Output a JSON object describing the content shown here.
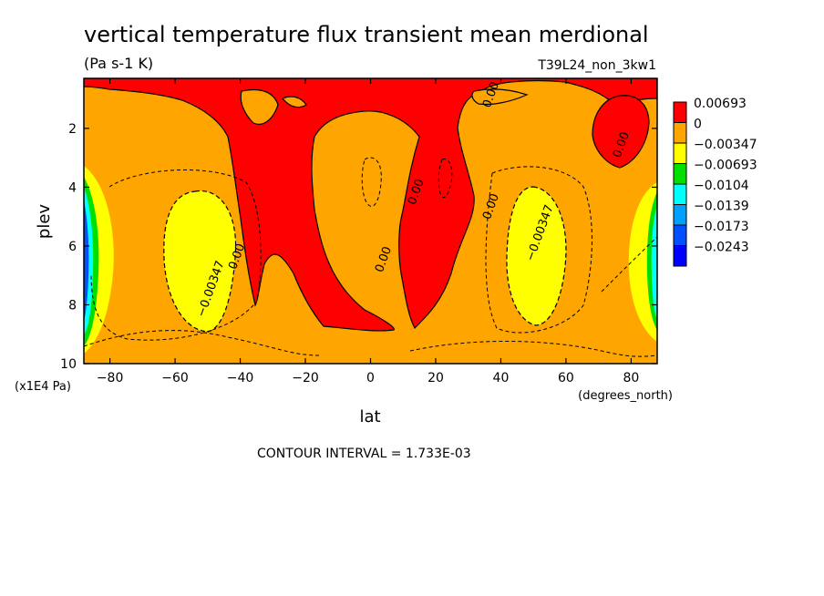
{
  "chart_data": {
    "type": "heatmap",
    "title": "vertical temperature flux transient mean merdional",
    "subtitle": "(Pa s-1 K)",
    "run_label": "T39L24_non_3kw1",
    "xlabel": "lat",
    "x_units": "(degrees_north)",
    "ylabel": "plev",
    "y_units": "(x1E4 Pa)",
    "xlim": [
      -88,
      88
    ],
    "ylim": [
      10,
      0.3
    ],
    "x_ticks": [
      -80,
      -60,
      -40,
      -20,
      0,
      20,
      40,
      60,
      80
    ],
    "x_tick_labels": [
      "−80",
      "−60",
      "−40",
      "−20",
      "0",
      "20",
      "40",
      "60",
      "80"
    ],
    "y_ticks": [
      2,
      4,
      6,
      8,
      10
    ],
    "y_tick_labels": [
      "2",
      "4",
      "6",
      "8",
      "10"
    ],
    "contour_interval_text": "CONTOUR INTERVAL = 1.733E-03",
    "colorbar": [
      {
        "label": "0.00693",
        "color": "#ff0000"
      },
      {
        "label": "0",
        "color": "#ffa500"
      },
      {
        "label": "−0.00347",
        "color": "#ffff00"
      },
      {
        "label": "−0.00693",
        "color": "#00e000"
      },
      {
        "label": "−0.0104",
        "color": "#00ffff"
      },
      {
        "label": "−0.0139",
        "color": "#00a0ff"
      },
      {
        "label": "−0.0173",
        "color": "#0050ff"
      },
      {
        "label": "−0.0243",
        "color": "#0000ff"
      }
    ],
    "contour_labels": [
      {
        "text": "0.00",
        "lat": 38,
        "plev": 0.9
      },
      {
        "text": "0.00",
        "lat": 78,
        "plev": 2.6
      },
      {
        "text": "0.00",
        "lat": 15,
        "plev": 4.2
      },
      {
        "text": "0.00",
        "lat": 38,
        "plev": 4.7
      },
      {
        "text": "0.00",
        "lat": 5,
        "plev": 6.5
      },
      {
        "text": "0.00",
        "lat": -40,
        "plev": 6.4
      },
      {
        "text": "−0.00347",
        "lat": 53,
        "plev": 5.6
      },
      {
        "text": "−0.00347",
        "lat": -48,
        "plev": 7.5
      }
    ]
  }
}
